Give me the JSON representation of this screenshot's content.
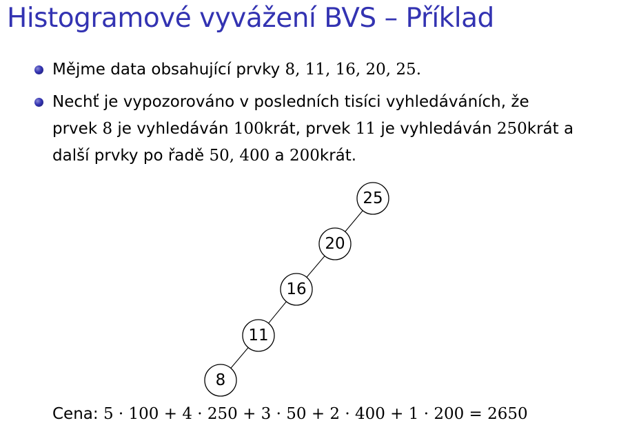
{
  "title": "Histogramové vyvážení BVS – Příklad",
  "bullets": [
    {
      "text_a": "Mějme data obsahující prvky ",
      "math_a": "8, 11, 16, 20, 25."
    },
    {
      "line1": "Nechť je vypozorováno v posledních tisíci vyhledáváních, že",
      "line2_a": "prvek ",
      "line2_m1": "8",
      "line2_b": " je vyhledáván ",
      "line2_m2": "100",
      "line2_c": "krát, prvek ",
      "line2_m3": "11",
      "line2_d": " je vyhledáván ",
      "line2_m4": "250",
      "line2_e": "krát a",
      "line3_a": "další prvky po řadě ",
      "line3_m1": "50, 400",
      "line3_b": " a ",
      "line3_m2": "200",
      "line3_c": "krát."
    }
  ],
  "tree": {
    "nodes": [
      "25",
      "20",
      "16",
      "11",
      "8"
    ]
  },
  "cost": {
    "label": "Cena: ",
    "formula": "5 · 100 + 4 · 250 + 3 · 50 + 2 · 400 + 1 · 200 = 2650"
  },
  "colors": {
    "title": "#3333b2",
    "bullet": "#3333b2"
  }
}
